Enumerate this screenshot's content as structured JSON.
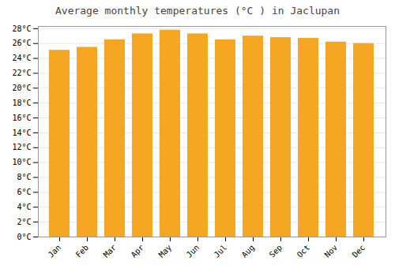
{
  "chart_data": {
    "type": "bar",
    "title": "Average monthly temperatures (°C ) in Jaclupan",
    "categories": [
      "Jan",
      "Feb",
      "Mar",
      "Apr",
      "May",
      "Jun",
      "Jul",
      "Aug",
      "Sep",
      "Oct",
      "Nov",
      "Dec"
    ],
    "values": [
      25.1,
      25.5,
      26.5,
      27.3,
      27.8,
      27.3,
      26.5,
      27.0,
      26.8,
      26.7,
      26.2,
      26.0
    ],
    "color": "#F5A623",
    "ylim": [
      0,
      28.3
    ],
    "yticks": [
      {
        "value": 0,
        "label": "0°C"
      },
      {
        "value": 2,
        "label": "2°C"
      },
      {
        "value": 4,
        "label": "4°C"
      },
      {
        "value": 6,
        "label": "6°C"
      },
      {
        "value": 8,
        "label": "8°C"
      },
      {
        "value": 10,
        "label": "10°C"
      },
      {
        "value": 12,
        "label": "12°C"
      },
      {
        "value": 14,
        "label": "14°C"
      },
      {
        "value": 16,
        "label": "16°C"
      },
      {
        "value": 18,
        "label": "18°C"
      },
      {
        "value": 20,
        "label": "20°C"
      },
      {
        "value": 22,
        "label": "22°C"
      },
      {
        "value": 24,
        "label": "24°C"
      },
      {
        "value": 26,
        "label": "26°C"
      },
      {
        "value": 28,
        "label": "28°C"
      }
    ],
    "grid": true
  }
}
